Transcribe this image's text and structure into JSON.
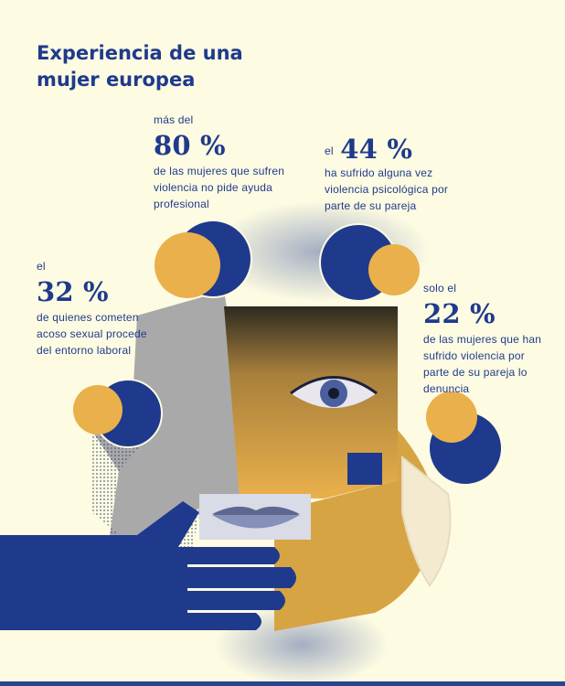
{
  "title": "Experiencia de una mujer europea",
  "stats": [
    {
      "prefix": "más del",
      "value": "80 %",
      "description": "de las mujeres que sufren violencia no pide ayuda profesional"
    },
    {
      "prefix": "el",
      "value": "44 %",
      "description": "ha sufrido alguna vez violencia psicológica por parte de su pareja"
    },
    {
      "prefix": "el",
      "value": "32 %",
      "description": "de quienes cometen acoso sexual procede del entorno laboral"
    },
    {
      "prefix": "solo el",
      "value": "22 %",
      "description": "de las mujeres que han sufrido violencia por parte de su pareja lo denuncia"
    }
  ],
  "colors": {
    "background": "#fdfbe2",
    "navy": "#1f3a8c",
    "mustard": "#eab04b",
    "gray": "#a9a9a9"
  },
  "illustration": [
    "face-collage",
    "eye",
    "lips",
    "hand",
    "circles"
  ]
}
